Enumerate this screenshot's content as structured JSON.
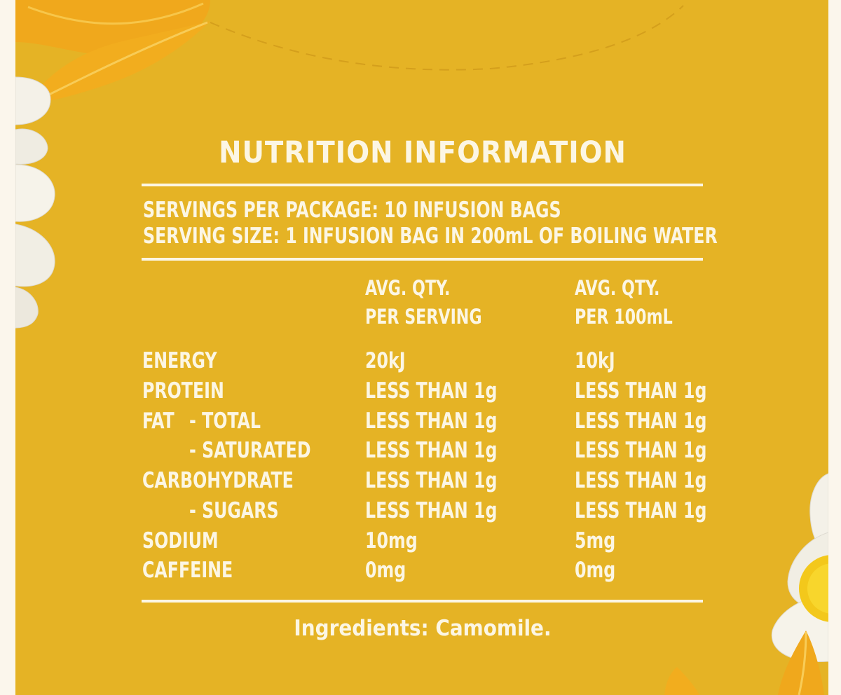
{
  "panel": {
    "title": "NUTRITION INFORMATION",
    "servings_per_package": "SERVINGS PER PACKAGE: 10 INFUSION BAGS",
    "serving_size": "SERVING SIZE: 1 INFUSION BAG IN 200mL OF BOILING WATER",
    "columns": [
      {
        "line1": "AVG. QTY.",
        "line2": "PER SERVING"
      },
      {
        "line1": "AVG. QTY.",
        "line2": "PER 100mL"
      }
    ],
    "rows": [
      {
        "label": "ENERGY",
        "per_serving": "20kJ",
        "per_100ml": "10kJ"
      },
      {
        "label": "PROTEIN",
        "per_serving": "LESS THAN 1g",
        "per_100ml": "LESS THAN 1g"
      },
      {
        "label": "FAT",
        "sublabel": "- TOTAL",
        "per_serving": "LESS THAN 1g",
        "per_100ml": "LESS THAN 1g"
      },
      {
        "label": "",
        "sublabel": "- SATURATED",
        "per_serving": "LESS THAN 1g",
        "per_100ml": "LESS THAN 1g"
      },
      {
        "label": "CARBOHYDRATE",
        "per_serving": "LESS THAN 1g",
        "per_100ml": "LESS THAN 1g"
      },
      {
        "label": "",
        "sublabel": "- SUGARS",
        "per_serving": "LESS THAN 1g",
        "per_100ml": "LESS THAN 1g"
      },
      {
        "label": "SODIUM",
        "per_serving": "10mg",
        "per_100ml": "5mg"
      },
      {
        "label": "CAFFEINE",
        "per_serving": "0mg",
        "per_100ml": "0mg"
      }
    ],
    "ingredients": "Ingredients: Camomile."
  },
  "colors": {
    "background": "#e5b325",
    "text": "#fcf6e4",
    "leaf": "#f0a81c",
    "petal": "#f4f1e8"
  },
  "decorations": {
    "top_left": [
      "leaf-icon",
      "camomile-flower-icon"
    ],
    "bottom_right": [
      "camomile-flower-icon",
      "leaf-icon"
    ]
  }
}
